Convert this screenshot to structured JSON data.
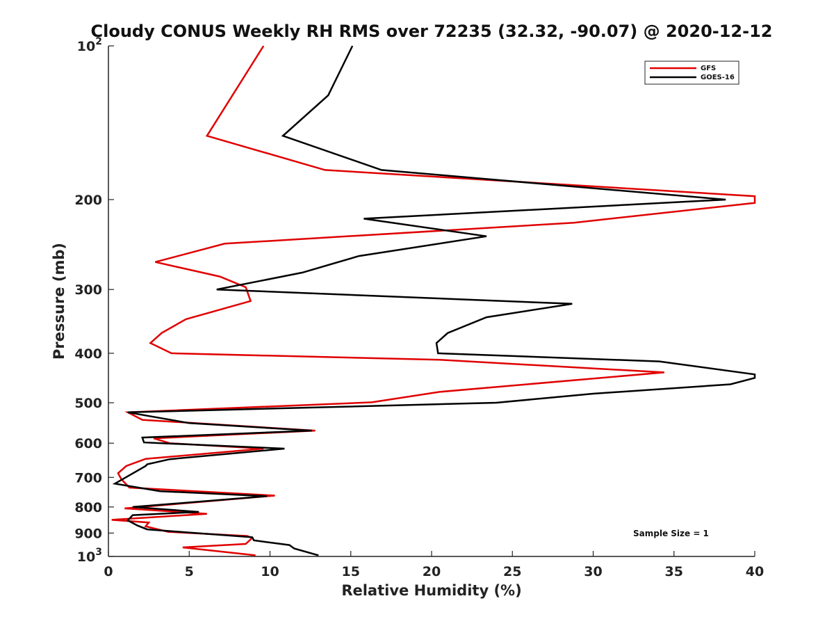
{
  "chart_data": {
    "type": "line",
    "title": "Cloudy CONUS Weekly RH RMS over 72235 (32.32, -90.07) @ 2020-12-12",
    "xlabel": "Relative Humidity (%)",
    "ylabel": "Pressure (mb)",
    "xlim": [
      0,
      40
    ],
    "ylim": [
      100,
      1000
    ],
    "yscale": "log",
    "y_reversed": true,
    "xticks": [
      0,
      5,
      10,
      15,
      20,
      25,
      30,
      35,
      40
    ],
    "xtick_labels": [
      "0",
      "5",
      "10",
      "15",
      "20",
      "25",
      "30",
      "35",
      "40"
    ],
    "yticks": [
      100,
      200,
      300,
      400,
      500,
      600,
      700,
      800,
      900,
      1000
    ],
    "ytick_labels": [
      {
        "base": "10",
        "exp": "2"
      },
      {
        "base": "200",
        "exp": ""
      },
      {
        "base": "300",
        "exp": ""
      },
      {
        "base": "400",
        "exp": ""
      },
      {
        "base": "500",
        "exp": ""
      },
      {
        "base": "600",
        "exp": ""
      },
      {
        "base": "700",
        "exp": ""
      },
      {
        "base": "800",
        "exp": ""
      },
      {
        "base": "900",
        "exp": ""
      },
      {
        "base": "10",
        "exp": "3"
      }
    ],
    "legend_position": "top-right",
    "annotation": "Sample Size = 1",
    "series": [
      {
        "name": "GFS",
        "color": "#e00000",
        "points": [
          [
            9.6,
            100
          ],
          [
            6.1,
            150
          ],
          [
            13.4,
            175
          ],
          [
            40.0,
            197
          ],
          [
            40.0,
            203
          ],
          [
            28.8,
            222
          ],
          [
            7.2,
            244
          ],
          [
            2.9,
            265
          ],
          [
            6.9,
            283
          ],
          [
            8.5,
            297
          ],
          [
            8.8,
            316
          ],
          [
            4.8,
            343
          ],
          [
            3.3,
            365
          ],
          [
            2.6,
            382
          ],
          [
            3.9,
            400
          ],
          [
            20.5,
            412
          ],
          [
            34.4,
            436
          ],
          [
            20.5,
            476
          ],
          [
            16.3,
            499
          ],
          [
            1.2,
            522
          ],
          [
            2.1,
            540
          ],
          [
            12.8,
            567
          ],
          [
            2.8,
            587
          ],
          [
            3.8,
            600
          ],
          [
            9.6,
            615
          ],
          [
            2.3,
            644
          ],
          [
            1.1,
            665
          ],
          [
            0.6,
            687
          ],
          [
            0.8,
            706
          ],
          [
            1.3,
            733
          ],
          [
            10.3,
            760
          ],
          [
            1.0,
            805
          ],
          [
            6.1,
            825
          ],
          [
            0.2,
            848
          ],
          [
            2.5,
            858
          ],
          [
            2.3,
            873
          ],
          [
            3.7,
            895
          ],
          [
            8.6,
            912
          ],
          [
            8.9,
            920
          ],
          [
            8.5,
            945
          ],
          [
            4.6,
            960
          ],
          [
            9.1,
            995
          ]
        ]
      },
      {
        "name": "GOES-16",
        "color": "#000000",
        "points": [
          [
            15.1,
            100
          ],
          [
            13.6,
            125
          ],
          [
            10.8,
            150
          ],
          [
            16.9,
            175
          ],
          [
            38.2,
            200
          ],
          [
            15.8,
            218
          ],
          [
            23.4,
            236
          ],
          [
            15.5,
            258
          ],
          [
            12.0,
            278
          ],
          [
            6.7,
            300
          ],
          [
            28.7,
            320
          ],
          [
            23.4,
            340
          ],
          [
            21.0,
            365
          ],
          [
            20.3,
            382
          ],
          [
            20.4,
            400
          ],
          [
            34.1,
            415
          ],
          [
            40.0,
            440
          ],
          [
            40.0,
            447
          ],
          [
            38.5,
            460
          ],
          [
            30.0,
            480
          ],
          [
            24.0,
            500
          ],
          [
            1.2,
            522
          ],
          [
            5.0,
            548
          ],
          [
            12.6,
            567
          ],
          [
            2.1,
            585
          ],
          [
            2.2,
            598
          ],
          [
            10.9,
            615
          ],
          [
            3.8,
            645
          ],
          [
            2.4,
            660
          ],
          [
            2.3,
            665
          ],
          [
            0.4,
            720
          ],
          [
            3.2,
            745
          ],
          [
            9.8,
            762
          ],
          [
            1.5,
            800
          ],
          [
            5.6,
            818
          ],
          [
            1.5,
            830
          ],
          [
            1.2,
            850
          ],
          [
            1.8,
            870
          ],
          [
            2.4,
            885
          ],
          [
            8.9,
            917
          ],
          [
            9.0,
            930
          ],
          [
            11.2,
            950
          ],
          [
            11.5,
            965
          ],
          [
            13.0,
            995
          ]
        ]
      }
    ]
  }
}
